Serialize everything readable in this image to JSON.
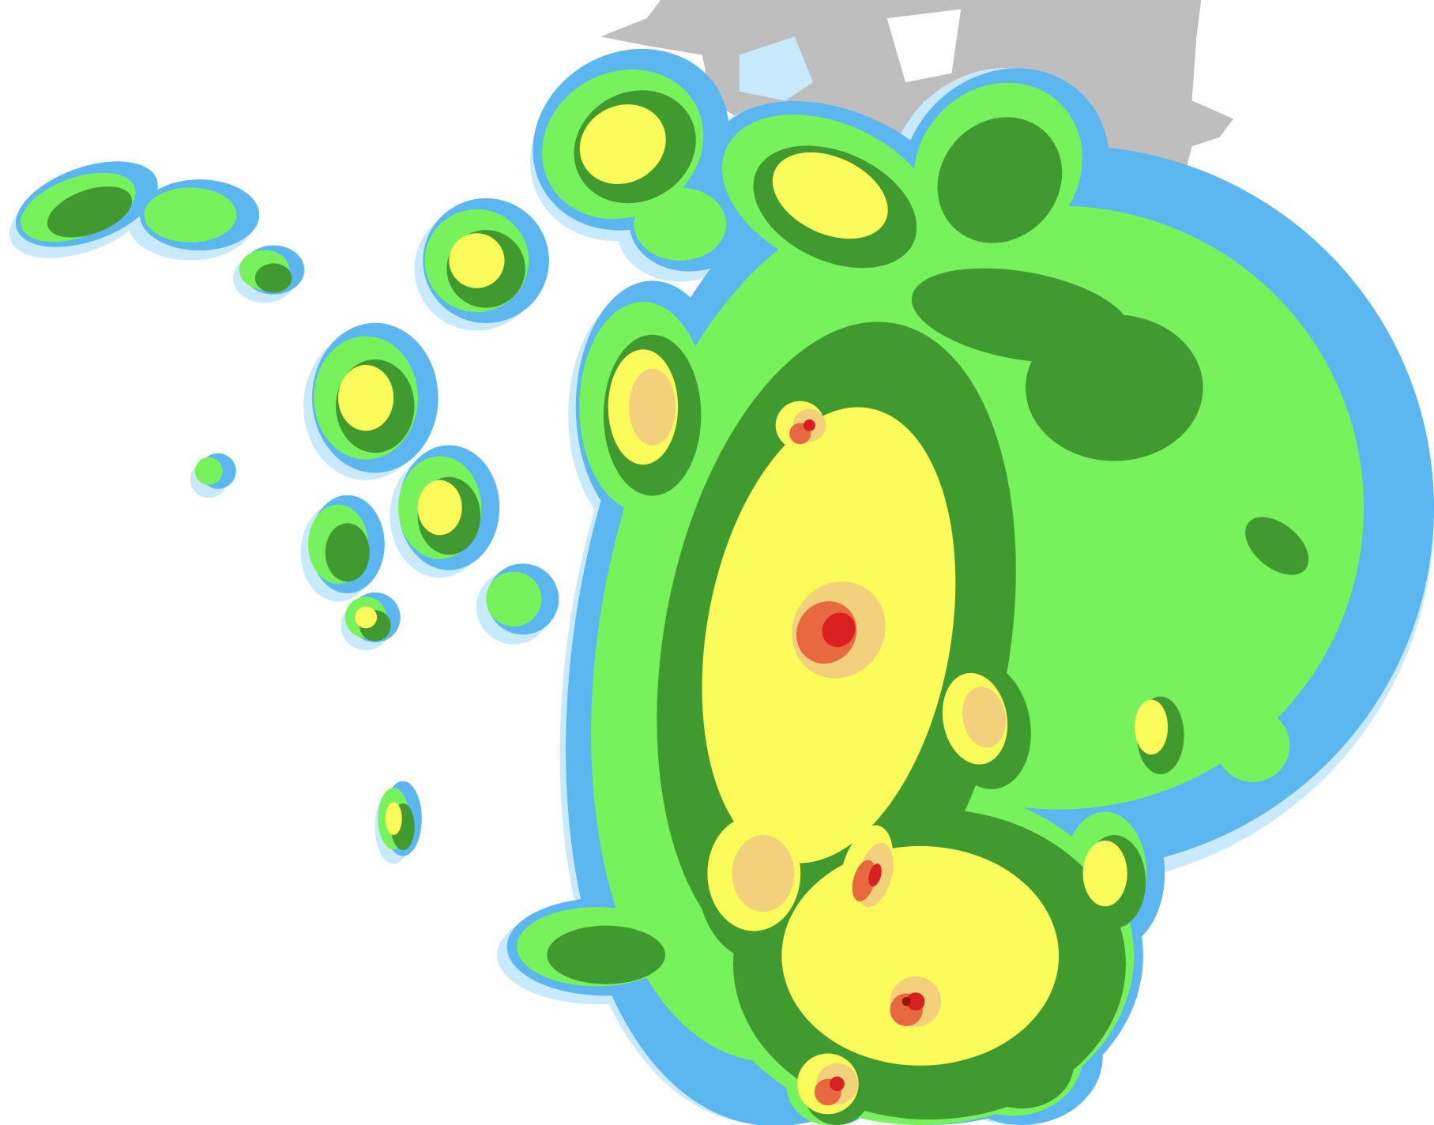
{
  "map": {
    "type": "precipitation-radar",
    "colors": {
      "background": "#ffffff",
      "land": "#bebebe",
      "very_light": "#c8eafc",
      "light": "#5cb6ef",
      "light_moderate": "#78f25c",
      "moderate": "#409a30",
      "moderate_heavy": "#fbfb5c",
      "heavy": "#f2d07c",
      "very_heavy": "#e86840",
      "intense": "#d82020",
      "extreme": "#9c1010"
    }
  }
}
